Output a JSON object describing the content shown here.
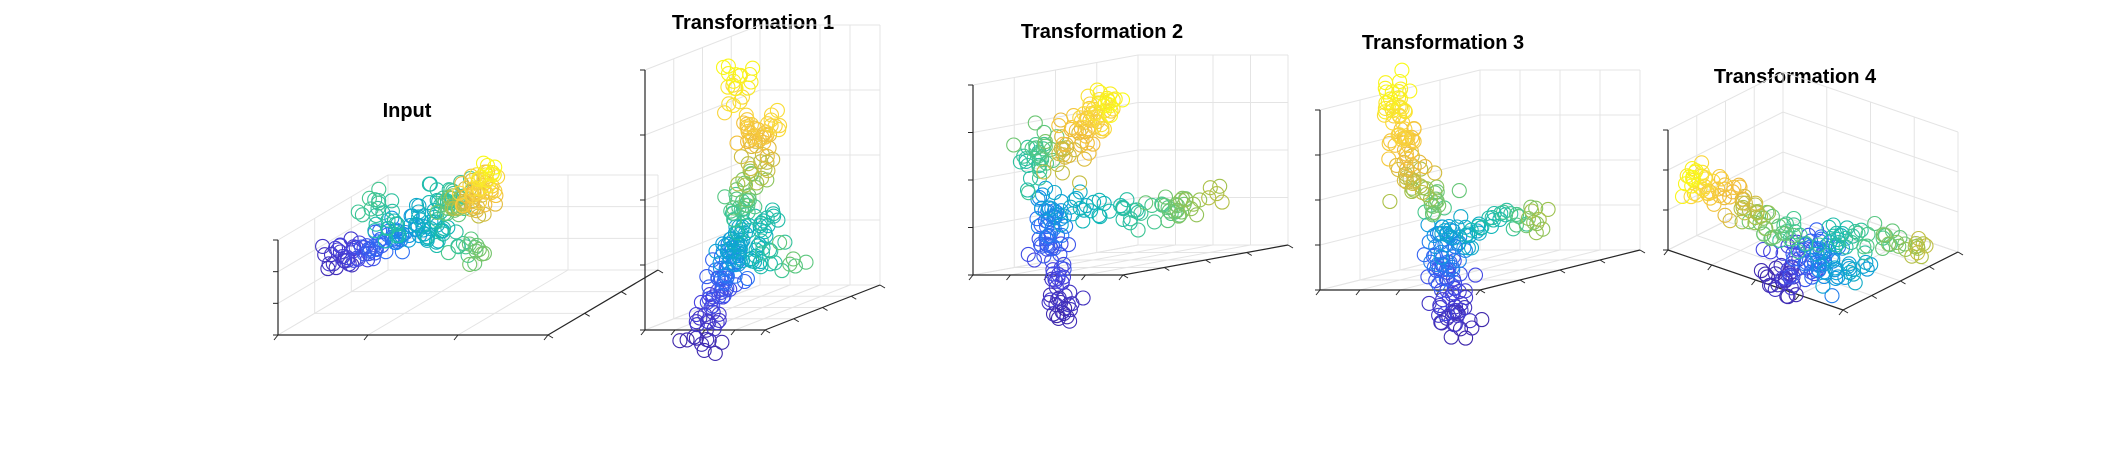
{
  "figure": {
    "panel_titles": [
      "Input",
      "Transformation 1",
      "Transformation 2",
      "Transformation 3",
      "Transformation 4"
    ]
  },
  "chart_data": [
    {
      "type": "scatter",
      "projection": "3d",
      "title": "Input",
      "xlabel": "",
      "ylabel": "",
      "zlabel": "",
      "grid": true,
      "marker": "open-circle",
      "colormap": "parula",
      "colormap_stops": [
        "#3e26a8",
        "#4742e0",
        "#2f6cf6",
        "#0f9bde",
        "#10b8b6",
        "#49c88c",
        "#a4c24a",
        "#f0b93a",
        "#f9d63c",
        "#f9fb15"
      ]
    },
    {
      "type": "scatter",
      "projection": "3d",
      "title": "Transformation 1",
      "xlabel": "",
      "ylabel": "",
      "zlabel": "",
      "grid": true,
      "marker": "open-circle",
      "colormap": "parula"
    },
    {
      "type": "scatter",
      "projection": "3d",
      "title": "Transformation 2",
      "xlabel": "",
      "ylabel": "",
      "zlabel": "",
      "grid": true,
      "marker": "open-circle",
      "colormap": "parula"
    },
    {
      "type": "scatter",
      "projection": "3d",
      "title": "Transformation 3",
      "xlabel": "",
      "ylabel": "",
      "zlabel": "",
      "grid": true,
      "marker": "open-circle",
      "colormap": "parula"
    },
    {
      "type": "scatter",
      "projection": "3d",
      "title": "Transformation 4",
      "xlabel": "",
      "ylabel": "",
      "zlabel": "",
      "grid": true,
      "marker": "open-circle",
      "colormap": "parula"
    }
  ]
}
